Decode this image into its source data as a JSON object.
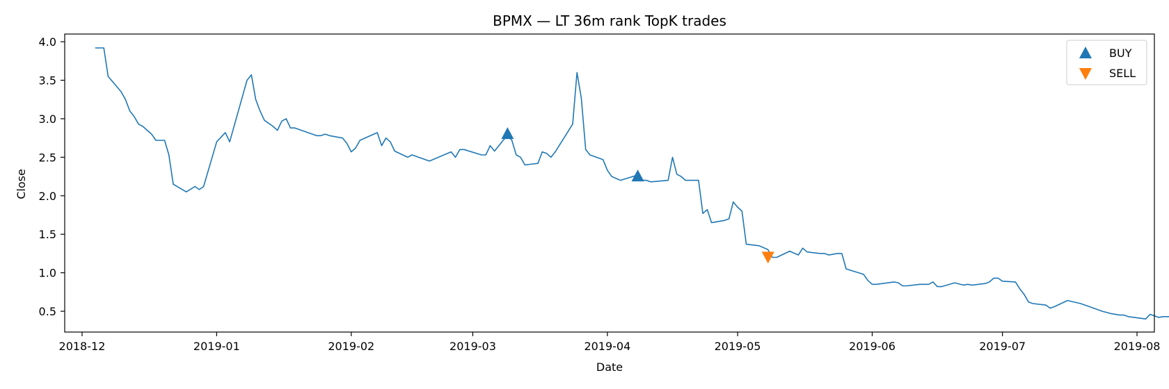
{
  "chart_data": {
    "type": "line",
    "title": "BPMX — LT 36m rank TopK trades",
    "xlabel": "Date",
    "ylabel": "Close",
    "xlim": [
      "2018-11-27",
      "2019-08-05"
    ],
    "ylim": [
      0.23,
      4.1
    ],
    "x_ticks": [
      "2018-12-01",
      "2019-01-01",
      "2019-02-01",
      "2019-03-01",
      "2019-04-01",
      "2019-05-01",
      "2019-06-01",
      "2019-07-01",
      "2019-08-01"
    ],
    "x_tick_labels": [
      "2018-12",
      "2019-01",
      "2019-02",
      "2019-03",
      "2019-04",
      "2019-05",
      "2019-06",
      "2019-07",
      "2019-08"
    ],
    "y_ticks": [
      0.5,
      1.0,
      1.5,
      2.0,
      2.5,
      3.0,
      3.5,
      4.0
    ],
    "y_tick_labels": [
      "0.5",
      "1.0",
      "1.5",
      "2.0",
      "2.5",
      "3.0",
      "3.5",
      "4.0"
    ],
    "grid": false,
    "legend_position": "top-right",
    "series": [
      {
        "kind": "line",
        "color": "#1f77b4",
        "points": [
          [
            "2018-12-04",
            3.92
          ],
          [
            "2018-12-06",
            3.92
          ],
          [
            "2018-12-07",
            3.55
          ],
          [
            "2018-12-10",
            3.35
          ],
          [
            "2018-12-11",
            3.25
          ],
          [
            "2018-12-12",
            3.1
          ],
          [
            "2018-12-13",
            3.03
          ],
          [
            "2018-12-14",
            2.93
          ],
          [
            "2018-12-15",
            2.9
          ],
          [
            "2018-12-17",
            2.8
          ],
          [
            "2018-12-18",
            2.72
          ],
          [
            "2018-12-20",
            2.72
          ],
          [
            "2018-12-21",
            2.53
          ],
          [
            "2018-12-22",
            2.15
          ],
          [
            "2018-12-25",
            2.05
          ],
          [
            "2018-12-27",
            2.12
          ],
          [
            "2018-12-28",
            2.08
          ],
          [
            "2018-12-29",
            2.12
          ],
          [
            "2019-01-01",
            2.7
          ],
          [
            "2019-01-03",
            2.82
          ],
          [
            "2019-01-04",
            2.7
          ],
          [
            "2019-01-08",
            3.5
          ],
          [
            "2019-01-09",
            3.57
          ],
          [
            "2019-01-10",
            3.25
          ],
          [
            "2019-01-11",
            3.1
          ],
          [
            "2019-01-12",
            2.98
          ],
          [
            "2019-01-14",
            2.9
          ],
          [
            "2019-01-15",
            2.85
          ],
          [
            "2019-01-16",
            2.97
          ],
          [
            "2019-01-17",
            3.0
          ],
          [
            "2019-01-18",
            2.88
          ],
          [
            "2019-01-19",
            2.88
          ],
          [
            "2019-01-24",
            2.78
          ],
          [
            "2019-01-25",
            2.78
          ],
          [
            "2019-01-26",
            2.8
          ],
          [
            "2019-01-27",
            2.78
          ],
          [
            "2019-01-30",
            2.75
          ],
          [
            "2019-01-31",
            2.68
          ],
          [
            "2019-02-01",
            2.57
          ],
          [
            "2019-02-02",
            2.62
          ],
          [
            "2019-02-03",
            2.72
          ],
          [
            "2019-02-07",
            2.82
          ],
          [
            "2019-02-08",
            2.65
          ],
          [
            "2019-02-09",
            2.75
          ],
          [
            "2019-02-10",
            2.7
          ],
          [
            "2019-02-11",
            2.58
          ],
          [
            "2019-02-14",
            2.5
          ],
          [
            "2019-02-15",
            2.53
          ],
          [
            "2019-02-19",
            2.45
          ],
          [
            "2019-02-24",
            2.57
          ],
          [
            "2019-02-25",
            2.5
          ],
          [
            "2019-02-26",
            2.6
          ],
          [
            "2019-02-27",
            2.6
          ],
          [
            "2019-03-03",
            2.53
          ],
          [
            "2019-03-04",
            2.53
          ],
          [
            "2019-03-05",
            2.65
          ],
          [
            "2019-03-06",
            2.58
          ],
          [
            "2019-03-08",
            2.72
          ],
          [
            "2019-03-09",
            2.78
          ],
          [
            "2019-03-10",
            2.72
          ],
          [
            "2019-03-11",
            2.53
          ],
          [
            "2019-03-12",
            2.5
          ],
          [
            "2019-03-13",
            2.4
          ],
          [
            "2019-03-16",
            2.42
          ],
          [
            "2019-03-17",
            2.57
          ],
          [
            "2019-03-18",
            2.55
          ],
          [
            "2019-03-19",
            2.5
          ],
          [
            "2019-03-20",
            2.57
          ],
          [
            "2019-03-24",
            2.93
          ],
          [
            "2019-03-25",
            3.6
          ],
          [
            "2019-03-26",
            3.27
          ],
          [
            "2019-03-27",
            2.6
          ],
          [
            "2019-03-28",
            2.53
          ],
          [
            "2019-03-31",
            2.47
          ],
          [
            "2019-04-01",
            2.33
          ],
          [
            "2019-04-02",
            2.25
          ],
          [
            "2019-04-04",
            2.2
          ],
          [
            "2019-04-08",
            2.27
          ],
          [
            "2019-04-09",
            2.2
          ],
          [
            "2019-04-10",
            2.2
          ],
          [
            "2019-04-11",
            2.18
          ],
          [
            "2019-04-15",
            2.2
          ],
          [
            "2019-04-16",
            2.5
          ],
          [
            "2019-04-17",
            2.28
          ],
          [
            "2019-04-18",
            2.25
          ],
          [
            "2019-04-19",
            2.2
          ],
          [
            "2019-04-22",
            2.2
          ],
          [
            "2019-04-23",
            1.77
          ],
          [
            "2019-04-24",
            1.82
          ],
          [
            "2019-04-25",
            1.65
          ],
          [
            "2019-04-28",
            1.68
          ],
          [
            "2019-04-29",
            1.7
          ],
          [
            "2019-04-30",
            1.92
          ],
          [
            "2019-05-01",
            1.85
          ],
          [
            "2019-05-02",
            1.8
          ],
          [
            "2019-05-03",
            1.37
          ],
          [
            "2019-05-06",
            1.35
          ],
          [
            "2019-05-08",
            1.3
          ],
          [
            "2019-05-09",
            1.2
          ],
          [
            "2019-05-10",
            1.2
          ],
          [
            "2019-05-13",
            1.28
          ],
          [
            "2019-05-15",
            1.23
          ],
          [
            "2019-05-16",
            1.32
          ],
          [
            "2019-05-17",
            1.27
          ],
          [
            "2019-05-20",
            1.25
          ],
          [
            "2019-05-21",
            1.25
          ],
          [
            "2019-05-22",
            1.23
          ],
          [
            "2019-05-24",
            1.25
          ],
          [
            "2019-05-25",
            1.25
          ],
          [
            "2019-05-26",
            1.05
          ],
          [
            "2019-05-30",
            0.98
          ],
          [
            "2019-05-31",
            0.9
          ],
          [
            "2019-06-01",
            0.85
          ],
          [
            "2019-06-02",
            0.85
          ],
          [
            "2019-06-06",
            0.88
          ],
          [
            "2019-06-07",
            0.87
          ],
          [
            "2019-06-08",
            0.83
          ],
          [
            "2019-06-09",
            0.83
          ],
          [
            "2019-06-12",
            0.85
          ],
          [
            "2019-06-14",
            0.85
          ],
          [
            "2019-06-15",
            0.88
          ],
          [
            "2019-06-16",
            0.82
          ],
          [
            "2019-06-17",
            0.82
          ],
          [
            "2019-06-20",
            0.87
          ],
          [
            "2019-06-22",
            0.84
          ],
          [
            "2019-06-23",
            0.85
          ],
          [
            "2019-06-24",
            0.84
          ],
          [
            "2019-06-27",
            0.86
          ],
          [
            "2019-06-28",
            0.88
          ],
          [
            "2019-06-29",
            0.93
          ],
          [
            "2019-06-30",
            0.93
          ],
          [
            "2019-07-01",
            0.89
          ],
          [
            "2019-07-04",
            0.88
          ],
          [
            "2019-07-05",
            0.79
          ],
          [
            "2019-07-06",
            0.72
          ],
          [
            "2019-07-07",
            0.62
          ],
          [
            "2019-07-08",
            0.6
          ],
          [
            "2019-07-11",
            0.58
          ],
          [
            "2019-07-12",
            0.54
          ],
          [
            "2019-07-13",
            0.56
          ],
          [
            "2019-07-16",
            0.64
          ],
          [
            "2019-07-19",
            0.6
          ],
          [
            "2019-07-21",
            0.56
          ],
          [
            "2019-07-22",
            0.54
          ],
          [
            "2019-07-24",
            0.5
          ],
          [
            "2019-07-26",
            0.47
          ],
          [
            "2019-07-28",
            0.45
          ],
          [
            "2019-07-29",
            0.45
          ],
          [
            "2019-07-30",
            0.43
          ],
          [
            "2019-08-03",
            0.4
          ],
          [
            "2019-08-04",
            0.46
          ],
          [
            "2019-08-06",
            0.42
          ],
          [
            "2019-08-07",
            0.43
          ],
          [
            "2019-08-11",
            0.43
          ],
          [
            "2019-08-13",
            0.42
          ]
        ]
      },
      {
        "kind": "marker",
        "name": "BUY",
        "marker": "triangle-up",
        "color": "#1f77b4",
        "points": [
          [
            "2019-03-09",
            2.8
          ],
          [
            "2019-04-08",
            2.25
          ]
        ]
      },
      {
        "kind": "marker",
        "name": "SELL",
        "marker": "triangle-down",
        "color": "#ff7f0e",
        "points": [
          [
            "2019-05-08",
            1.21
          ]
        ]
      }
    ]
  }
}
